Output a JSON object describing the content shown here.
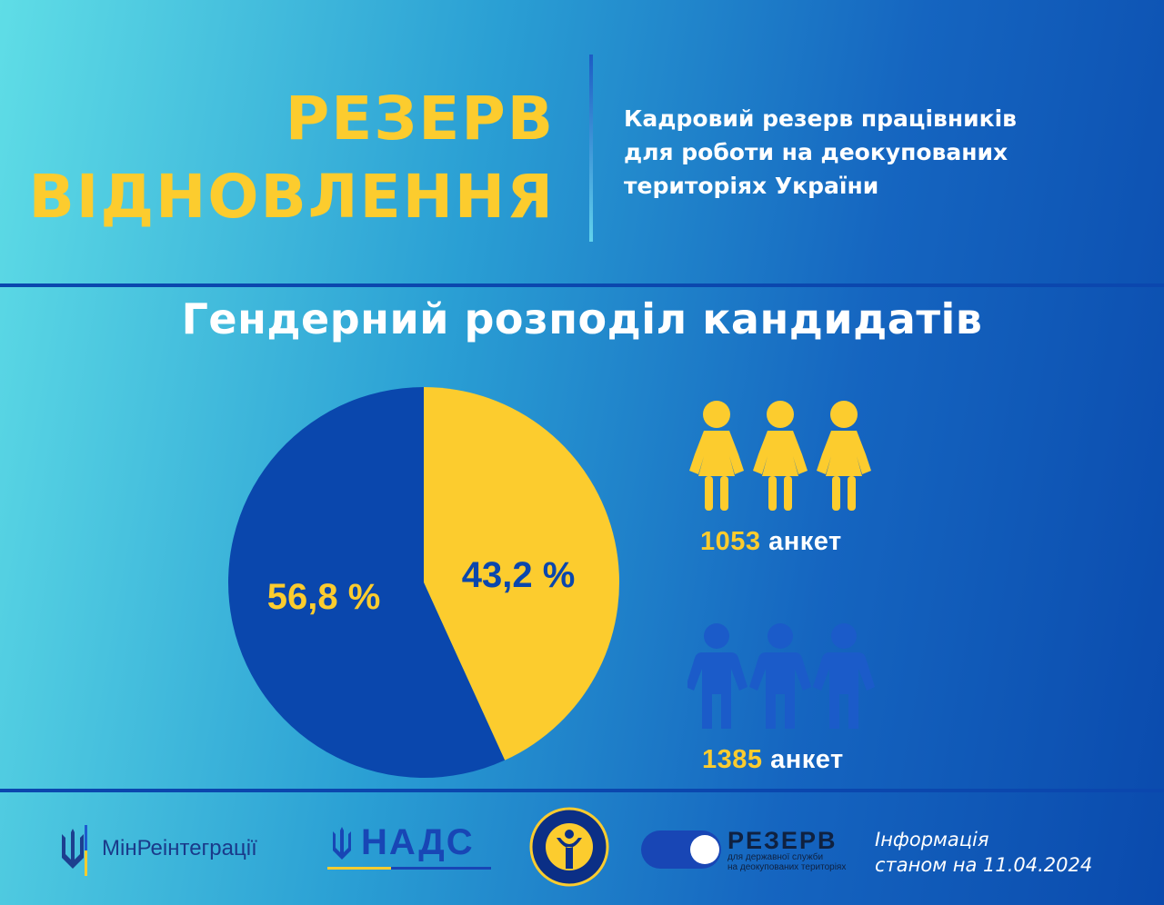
{
  "header": {
    "title_line1": "РЕЗЕРВ",
    "title_line2": "ВІДНОВЛЕННЯ",
    "subtitle_line1": "Кадровий резерв працівників",
    "subtitle_line2": "для роботи на деокупованих",
    "subtitle_line3": "територіях України"
  },
  "colors": {
    "yellow": "#fccc2e",
    "blue": "#0a47ad",
    "person_blue": "#1b5bc9"
  },
  "chart_data": {
    "type": "pie",
    "title": "Гендерний розподіл кандидатів",
    "slices": [
      {
        "label": "43,2 %",
        "value": 43.2,
        "color": "#fccc2e",
        "label_color": "#0a47ad"
      },
      {
        "label": "56,8 %",
        "value": 56.8,
        "color": "#0a47ad",
        "label_color": "#fccc2e"
      }
    ],
    "legend": [
      {
        "icon": "woman-icon",
        "count": "1053",
        "suffix": "анкет",
        "color": "#fccc2e"
      },
      {
        "icon": "man-icon",
        "count": "1385",
        "suffix": "анкет",
        "color": "#1b5bc9"
      }
    ]
  },
  "footer": {
    "logo_minre": "МінРеінтеграції",
    "logo_nads": "НАДС",
    "logo_employment_ring": "ДЕРЖАВНА СЛУЖБА ЗАЙНЯТОСТІ",
    "logo_rezerv": "РЕЗЕРВ",
    "logo_rezerv_sub1": "для державної служби",
    "logo_rezerv_sub2": "на деокупованих територіях",
    "info_line1": "Інформація",
    "info_line2": "станом на 11.04.2024"
  }
}
